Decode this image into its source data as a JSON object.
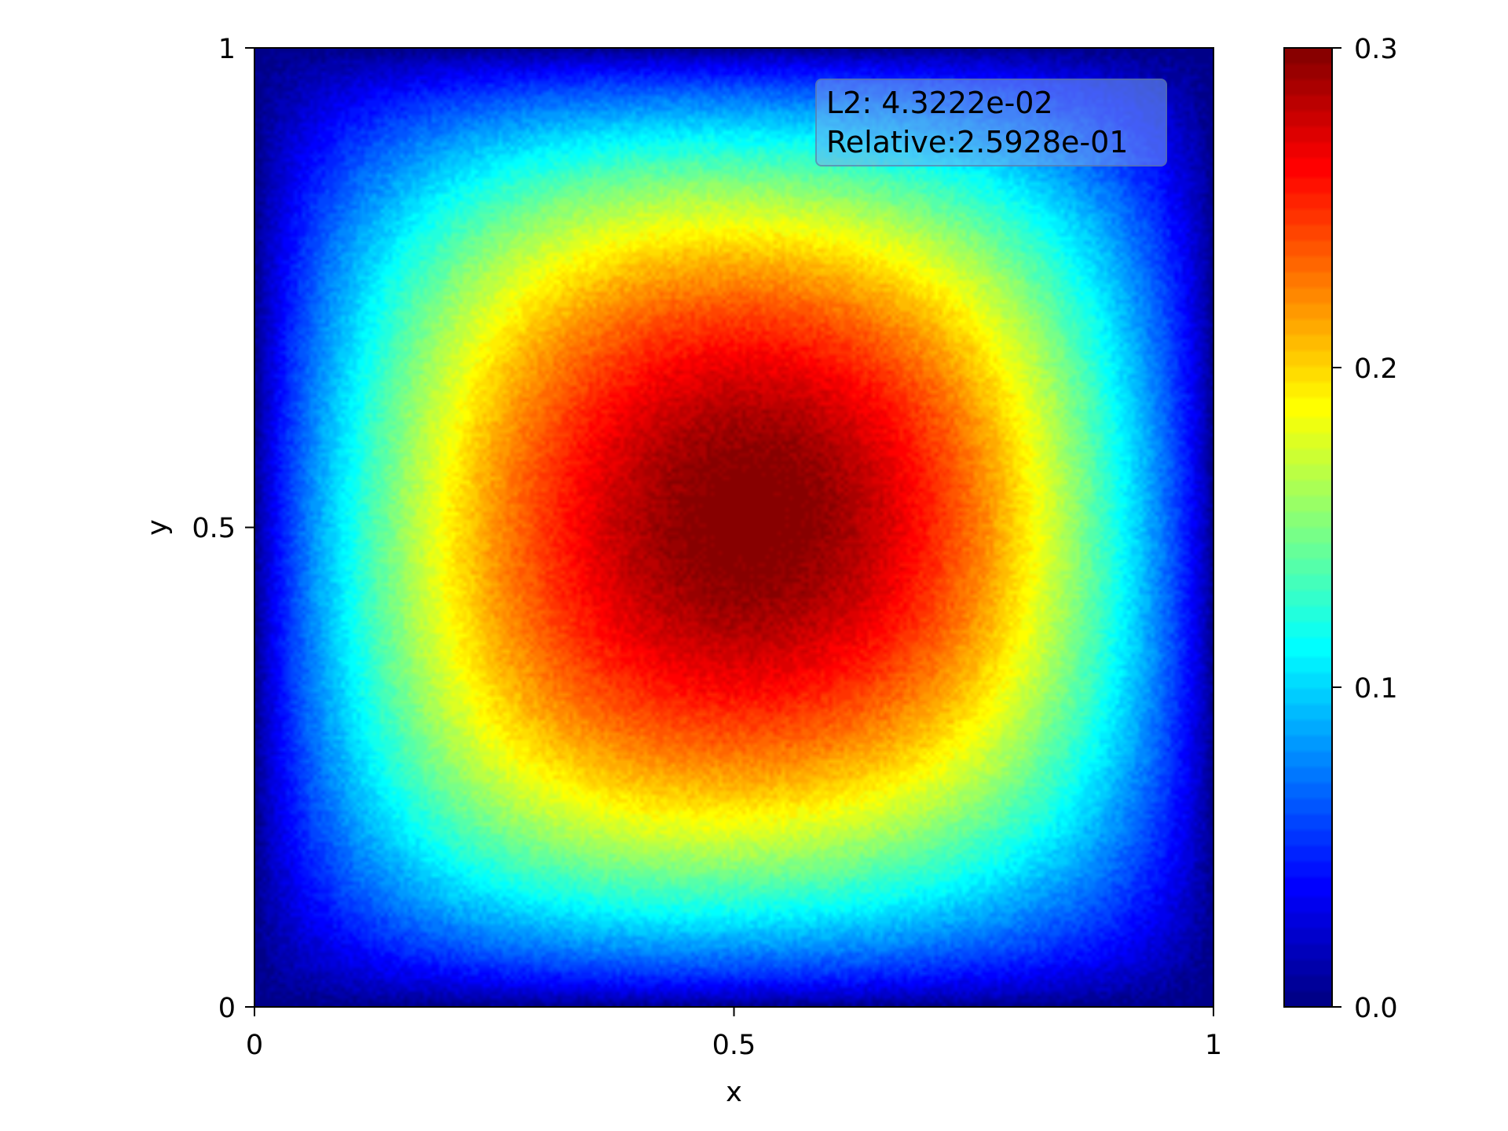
{
  "chart_data": {
    "type": "heatmap",
    "title": "",
    "xlabel": "x",
    "ylabel": "y",
    "xlim": [
      0,
      1
    ],
    "ylim": [
      0,
      1
    ],
    "x_ticks": [
      "0",
      "0.5",
      "1"
    ],
    "y_ticks": [
      "0",
      "0.5",
      "1"
    ],
    "colormap": "jet",
    "colorbar": {
      "range": [
        0.0,
        0.3
      ],
      "ticks": [
        "0.0",
        "0.1",
        "0.2",
        "0.3"
      ]
    },
    "field": {
      "peak_value": 0.29,
      "peak_center": [
        0.58,
        0.55
      ],
      "edge_value": 0.0
    },
    "annotation": {
      "l2": "L2: 4.3222e-02",
      "relative": "Relative:2.5928e-01"
    },
    "grid": false
  }
}
